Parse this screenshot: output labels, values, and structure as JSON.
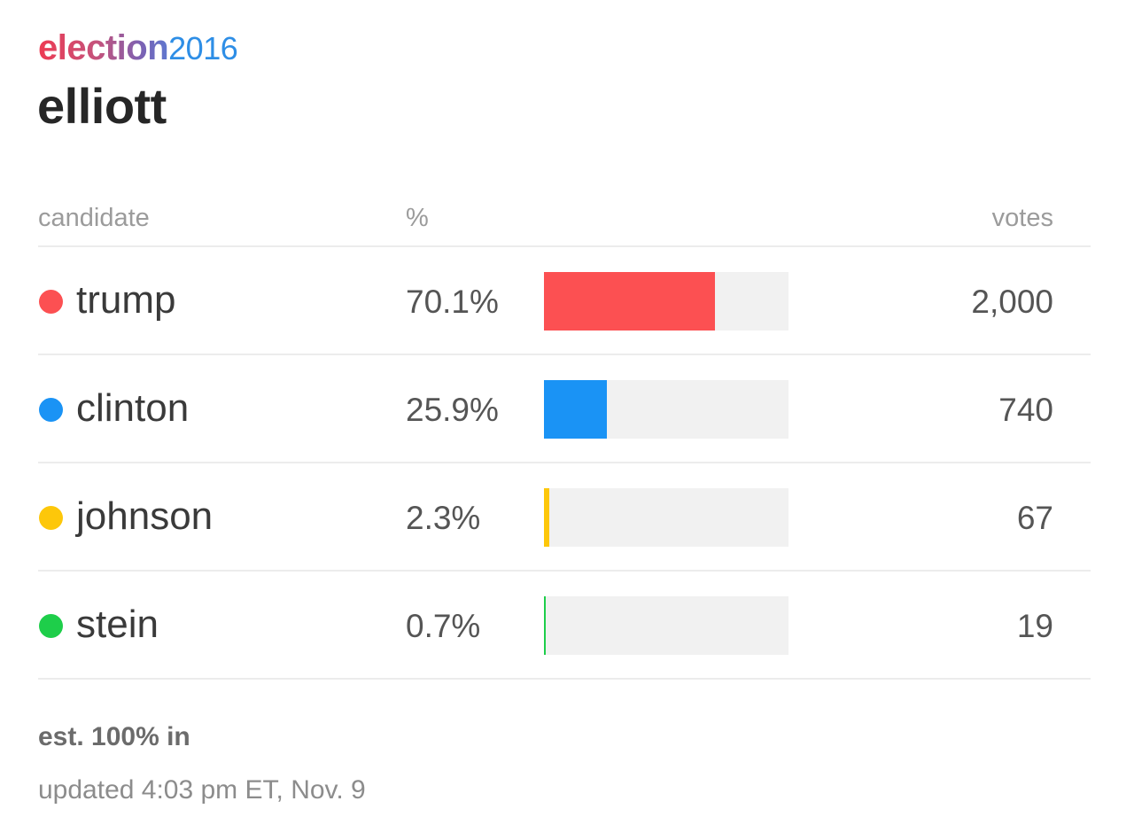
{
  "brand": {
    "word": "election",
    "year": "2016"
  },
  "page_title": "elliott",
  "columns": {
    "candidate": "candidate",
    "percent": "%",
    "votes": "votes"
  },
  "rows": [
    {
      "name": "trump",
      "pct_label": "70.1%",
      "votes_label": "2,000",
      "color": "#fc5052"
    },
    {
      "name": "clinton",
      "pct_label": "25.9%",
      "votes_label": "740",
      "color": "#1a93f5"
    },
    {
      "name": "johnson",
      "pct_label": "2.3%",
      "votes_label": "67",
      "color": "#fdc70a"
    },
    {
      "name": "stein",
      "pct_label": "0.7%",
      "votes_label": "19",
      "color": "#1ece4a"
    }
  ],
  "footer": {
    "reporting": "est. 100% in",
    "updated": "updated 4:03 pm ET, Nov. 9"
  },
  "chart_data": {
    "type": "bar",
    "categories": [
      "trump",
      "clinton",
      "johnson",
      "stein"
    ],
    "values": [
      70.1,
      25.9,
      2.3,
      0.7
    ],
    "votes": [
      2000,
      740,
      67,
      19
    ],
    "colors": [
      "#fc5052",
      "#1a93f5",
      "#fdc70a",
      "#1ece4a"
    ],
    "xlabel": "%",
    "ylabel": "candidate",
    "xlim": [
      0,
      100
    ],
    "grid": false,
    "orientation": "horizontal"
  }
}
